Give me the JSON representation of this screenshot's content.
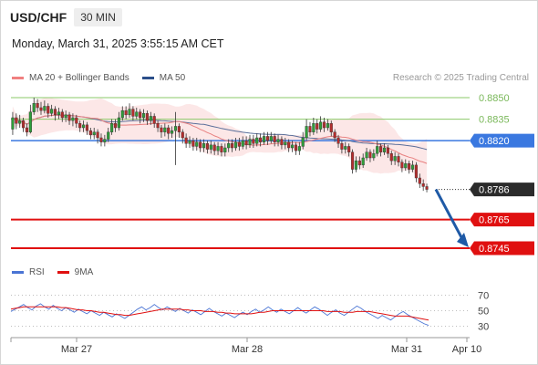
{
  "header": {
    "symbol": "USD/CHF",
    "timeframe": "30 MIN"
  },
  "timestamp": "Monday, March 31, 2025 3:55:15 AM CET",
  "legend": {
    "items": [
      {
        "label": "MA 20 + Bollinger Bands",
        "color": "#f08080"
      },
      {
        "label": "MA 50",
        "color": "#2c4f8a"
      }
    ],
    "credit": "Research © 2025 Trading Central"
  },
  "chart_data": {
    "type": "candlestick",
    "price_levels": [
      {
        "value": 0.885,
        "label": "0.8850",
        "style": "green-thin",
        "color": "#8bc96a"
      },
      {
        "value": 0.8835,
        "label": "0.8835",
        "style": "green-thin",
        "color": "#8bc96a"
      },
      {
        "value": 0.882,
        "label": "0.8820",
        "style": "blue-badge",
        "color": "#3a78e0"
      },
      {
        "value": 0.8786,
        "label": "0.8786",
        "style": "dark-badge",
        "color": "#2b2b2b"
      },
      {
        "value": 0.8765,
        "label": "0.8765",
        "style": "red-badge",
        "color": "#e01010"
      },
      {
        "value": 0.8745,
        "label": "0.8745",
        "style": "red-badge",
        "color": "#e01010"
      }
    ],
    "y_range": [
      0.8735,
      0.886
    ],
    "x_ticks": [
      "Mar 27",
      "Mar 28",
      "Mar 31",
      "Apr 10"
    ],
    "forecast": {
      "from": 0.8786,
      "to": 0.8745,
      "color": "#1f5aa6"
    },
    "candles": [
      [
        0.8828,
        0.8836,
        0.884,
        0.8824
      ],
      [
        0.8836,
        0.8832,
        0.8839,
        0.8828
      ],
      [
        0.8832,
        0.8834,
        0.8838,
        0.8829
      ],
      [
        0.8834,
        0.8829,
        0.8836,
        0.8826
      ],
      [
        0.8829,
        0.8826,
        0.8832,
        0.8823
      ],
      [
        0.8826,
        0.884,
        0.8845,
        0.8825
      ],
      [
        0.884,
        0.8846,
        0.885,
        0.8838
      ],
      [
        0.8846,
        0.8843,
        0.8849,
        0.884
      ],
      [
        0.8843,
        0.8841,
        0.8847,
        0.8838
      ],
      [
        0.8841,
        0.8844,
        0.8848,
        0.8839
      ],
      [
        0.8844,
        0.8839,
        0.8846,
        0.8836
      ],
      [
        0.8839,
        0.8842,
        0.8845,
        0.8837
      ],
      [
        0.8842,
        0.8838,
        0.8844,
        0.8834
      ],
      [
        0.8838,
        0.884,
        0.8843,
        0.8835
      ],
      [
        0.884,
        0.8836,
        0.8842,
        0.8833
      ],
      [
        0.8836,
        0.8838,
        0.8841,
        0.8833
      ],
      [
        0.8838,
        0.8834,
        0.884,
        0.8831
      ],
      [
        0.8834,
        0.8836,
        0.8839,
        0.883
      ],
      [
        0.8836,
        0.8832,
        0.8838,
        0.8829
      ],
      [
        0.8832,
        0.8829,
        0.8834,
        0.8826
      ],
      [
        0.8829,
        0.8831,
        0.8834,
        0.8826
      ],
      [
        0.8831,
        0.8827,
        0.8833,
        0.8824
      ],
      [
        0.8827,
        0.8824,
        0.8829,
        0.8821
      ],
      [
        0.8824,
        0.8826,
        0.8829,
        0.8821
      ],
      [
        0.8826,
        0.8822,
        0.8828,
        0.8818
      ],
      [
        0.8822,
        0.8819,
        0.8825,
        0.8816
      ],
      [
        0.8819,
        0.8821,
        0.8824,
        0.8816
      ],
      [
        0.8821,
        0.8826,
        0.8829,
        0.8819
      ],
      [
        0.8826,
        0.8832,
        0.8835,
        0.8824
      ],
      [
        0.8832,
        0.8829,
        0.8835,
        0.8826
      ],
      [
        0.8829,
        0.8836,
        0.884,
        0.8827
      ],
      [
        0.8836,
        0.8841,
        0.8844,
        0.8834
      ],
      [
        0.8841,
        0.8838,
        0.8844,
        0.8835
      ],
      [
        0.8838,
        0.8842,
        0.8846,
        0.8836
      ],
      [
        0.8842,
        0.8837,
        0.8844,
        0.8834
      ],
      [
        0.8837,
        0.884,
        0.8843,
        0.8835
      ],
      [
        0.884,
        0.8836,
        0.8842,
        0.8832
      ],
      [
        0.8836,
        0.8839,
        0.8842,
        0.8833
      ],
      [
        0.8839,
        0.8834,
        0.8841,
        0.8831
      ],
      [
        0.8834,
        0.8837,
        0.884,
        0.8831
      ],
      [
        0.8837,
        0.8832,
        0.8839,
        0.8829
      ],
      [
        0.8832,
        0.8829,
        0.8834,
        0.8826
      ],
      [
        0.8829,
        0.8826,
        0.8831,
        0.8822
      ],
      [
        0.8826,
        0.8829,
        0.8832,
        0.8823
      ],
      [
        0.8829,
        0.8825,
        0.8831,
        0.8821
      ],
      [
        0.8825,
        0.8827,
        0.883,
        0.8822
      ],
      [
        0.8827,
        0.883,
        0.884,
        0.8803
      ],
      [
        0.883,
        0.8826,
        0.8832,
        0.8822
      ],
      [
        0.8826,
        0.8822,
        0.8828,
        0.8818
      ],
      [
        0.8822,
        0.8818,
        0.8825,
        0.8815
      ],
      [
        0.8818,
        0.882,
        0.8823,
        0.8815
      ],
      [
        0.882,
        0.8816,
        0.8822,
        0.8813
      ],
      [
        0.8816,
        0.8819,
        0.8822,
        0.8813
      ],
      [
        0.8819,
        0.8815,
        0.8821,
        0.8812
      ],
      [
        0.8815,
        0.8818,
        0.8821,
        0.8812
      ],
      [
        0.8818,
        0.8814,
        0.882,
        0.8811
      ],
      [
        0.8814,
        0.8817,
        0.882,
        0.8811
      ],
      [
        0.8817,
        0.8813,
        0.8819,
        0.881
      ],
      [
        0.8813,
        0.8816,
        0.8819,
        0.881
      ],
      [
        0.8816,
        0.8812,
        0.8818,
        0.8809
      ],
      [
        0.8812,
        0.8815,
        0.8818,
        0.8809
      ],
      [
        0.8815,
        0.8818,
        0.8821,
        0.8812
      ],
      [
        0.8818,
        0.8815,
        0.8821,
        0.8812
      ],
      [
        0.8815,
        0.8819,
        0.8822,
        0.8813
      ],
      [
        0.8819,
        0.8816,
        0.8822,
        0.8813
      ],
      [
        0.8816,
        0.882,
        0.8823,
        0.8814
      ],
      [
        0.882,
        0.8817,
        0.8823,
        0.8814
      ],
      [
        0.8817,
        0.8821,
        0.8824,
        0.8815
      ],
      [
        0.8821,
        0.8818,
        0.8824,
        0.8815
      ],
      [
        0.8818,
        0.8822,
        0.8825,
        0.8816
      ],
      [
        0.8822,
        0.8819,
        0.8825,
        0.8816
      ],
      [
        0.8819,
        0.8823,
        0.8826,
        0.8817
      ],
      [
        0.8823,
        0.882,
        0.8826,
        0.8817
      ],
      [
        0.882,
        0.8823,
        0.8826,
        0.8818
      ],
      [
        0.8823,
        0.8819,
        0.8825,
        0.8816
      ],
      [
        0.8819,
        0.8821,
        0.8824,
        0.8816
      ],
      [
        0.8821,
        0.8817,
        0.8823,
        0.8814
      ],
      [
        0.8817,
        0.8819,
        0.8822,
        0.8814
      ],
      [
        0.8819,
        0.8815,
        0.8821,
        0.8812
      ],
      [
        0.8815,
        0.8817,
        0.882,
        0.8812
      ],
      [
        0.8817,
        0.8813,
        0.8819,
        0.881
      ],
      [
        0.8813,
        0.8816,
        0.8819,
        0.881
      ],
      [
        0.8816,
        0.8822,
        0.8826,
        0.8814
      ],
      [
        0.8822,
        0.883,
        0.8835,
        0.882
      ],
      [
        0.883,
        0.8826,
        0.8833,
        0.8823
      ],
      [
        0.8826,
        0.8832,
        0.8836,
        0.8824
      ],
      [
        0.8832,
        0.8828,
        0.8835,
        0.8825
      ],
      [
        0.8828,
        0.8833,
        0.8837,
        0.8826
      ],
      [
        0.8833,
        0.8829,
        0.8836,
        0.8826
      ],
      [
        0.8829,
        0.8832,
        0.8835,
        0.8827
      ],
      [
        0.8832,
        0.8826,
        0.8834,
        0.8823
      ],
      [
        0.8826,
        0.8822,
        0.8828,
        0.8819
      ],
      [
        0.8822,
        0.8818,
        0.8824,
        0.8815
      ],
      [
        0.8818,
        0.8814,
        0.882,
        0.8811
      ],
      [
        0.8814,
        0.8816,
        0.8819,
        0.8811
      ],
      [
        0.8816,
        0.8812,
        0.8818,
        0.8809
      ],
      [
        0.8812,
        0.88,
        0.8814,
        0.8797
      ],
      [
        0.88,
        0.8806,
        0.8809,
        0.8798
      ],
      [
        0.8806,
        0.8803,
        0.8809,
        0.88
      ],
      [
        0.8803,
        0.8808,
        0.8811,
        0.8801
      ],
      [
        0.8808,
        0.8812,
        0.8815,
        0.8806
      ],
      [
        0.8812,
        0.8808,
        0.8814,
        0.8805
      ],
      [
        0.8808,
        0.8811,
        0.8814,
        0.8806
      ],
      [
        0.8811,
        0.8816,
        0.882,
        0.8809
      ],
      [
        0.8816,
        0.8812,
        0.8818,
        0.8809
      ],
      [
        0.8812,
        0.8815,
        0.8818,
        0.881
      ],
      [
        0.8815,
        0.8811,
        0.8817,
        0.8808
      ],
      [
        0.8811,
        0.8806,
        0.8813,
        0.8803
      ],
      [
        0.8806,
        0.8809,
        0.8812,
        0.8803
      ],
      [
        0.8809,
        0.8805,
        0.8811,
        0.8802
      ],
      [
        0.8805,
        0.8801,
        0.8807,
        0.8798
      ],
      [
        0.8801,
        0.8804,
        0.8807,
        0.8799
      ],
      [
        0.8804,
        0.88,
        0.8806,
        0.8797
      ],
      [
        0.88,
        0.8803,
        0.8806,
        0.8798
      ],
      [
        0.8803,
        0.8794,
        0.8805,
        0.8791
      ],
      [
        0.8794,
        0.879,
        0.8797,
        0.8787
      ],
      [
        0.879,
        0.8788,
        0.8793,
        0.8785
      ],
      [
        0.8788,
        0.8786,
        0.879,
        0.8784
      ]
    ]
  },
  "rsi": {
    "legend": [
      {
        "label": "RSI",
        "color": "#4a74d4"
      },
      {
        "label": "9MA",
        "color": "#e01010"
      }
    ],
    "levels": [
      70,
      50,
      30
    ],
    "range": [
      20,
      80
    ],
    "rsi_values": [
      49,
      52,
      55,
      58,
      54,
      51,
      56,
      59,
      55,
      52,
      57,
      53,
      50,
      54,
      51,
      48,
      52,
      49,
      46,
      50,
      47,
      44,
      48,
      45,
      42,
      46,
      43,
      40,
      44,
      48,
      52,
      55,
      51,
      54,
      58,
      54,
      51,
      55,
      52,
      49,
      53,
      50,
      47,
      51,
      48,
      45,
      49,
      53,
      49,
      46,
      43,
      47,
      44,
      41,
      45,
      48,
      45,
      49,
      52,
      48,
      51,
      55,
      51,
      48,
      52,
      49,
      46,
      50,
      54,
      50,
      47,
      51,
      55,
      52,
      48,
      44,
      48,
      51,
      47,
      44,
      48,
      52,
      56,
      53,
      49,
      46,
      43,
      40,
      44,
      41,
      38,
      42,
      46,
      49,
      45,
      42,
      39,
      36,
      33,
      31
    ],
    "ma_values": [
      52,
      53,
      54,
      55,
      55,
      55,
      55,
      55,
      55,
      55,
      55,
      55,
      54,
      54,
      53,
      52,
      51,
      51,
      50,
      50,
      49,
      48,
      48,
      47,
      46,
      45,
      45,
      44,
      44,
      45,
      46,
      47,
      48,
      49,
      50,
      51,
      52,
      52,
      52,
      52,
      52,
      51,
      51,
      50,
      50,
      50,
      49,
      49,
      49,
      48,
      48,
      47,
      47,
      46,
      46,
      46,
      46,
      46,
      47,
      48,
      48,
      49,
      50,
      50,
      50,
      50,
      50,
      50,
      50,
      50,
      50,
      50,
      50,
      50,
      50,
      49,
      49,
      49,
      49,
      48,
      48,
      48,
      49,
      49,
      49,
      49,
      48,
      47,
      46,
      45,
      44,
      43,
      43,
      43,
      43,
      42,
      41,
      40,
      39,
      38
    ]
  }
}
